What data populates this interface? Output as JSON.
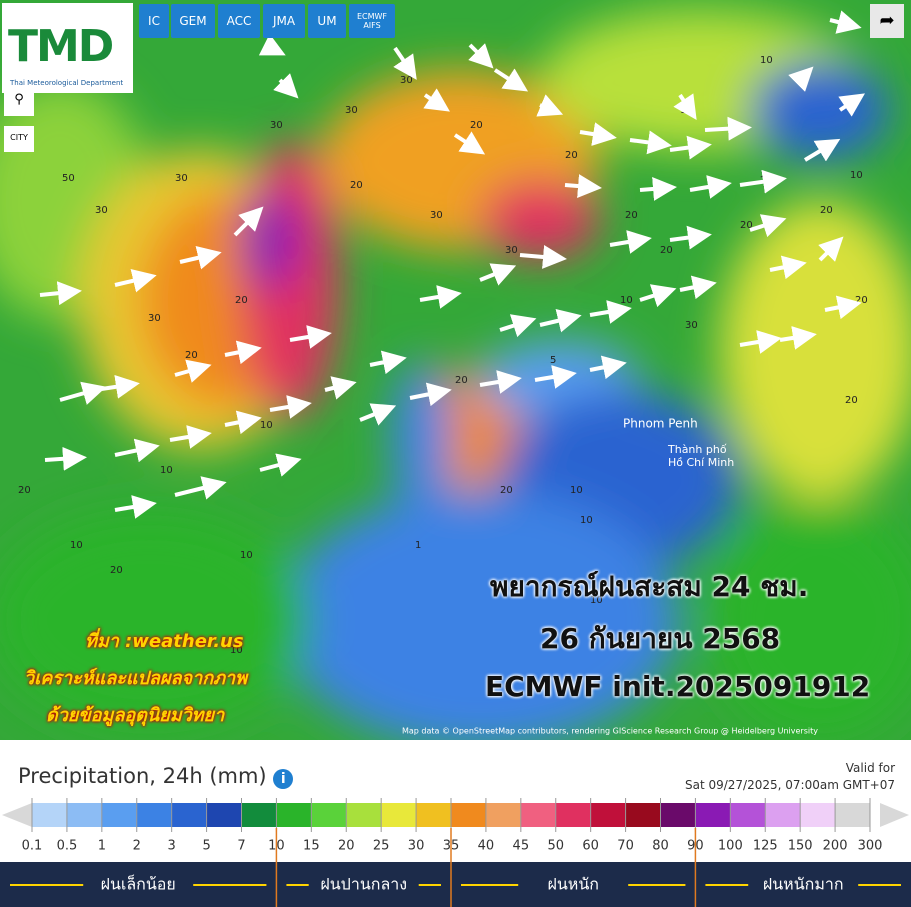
{
  "logo": {
    "name": "TMD",
    "subtitle": "Thai Meteorological Department"
  },
  "models": [
    "IC",
    "GEM",
    "ACC",
    "JMA",
    "UM",
    "ECMWF",
    "AIFS"
  ],
  "city": "CITY",
  "places": [
    "Phnom Penh",
    "Thành phố",
    "Hồ Chí Minh"
  ],
  "attribution": "Map data © OpenStreetMap contributors, rendering GIScience Research Group @ Heidelberg University",
  "overlay": [
    "พยากรณ์ฝนสะสม 24 ชม.",
    "26 กันยายน 2568",
    "ECMWF init.2025091912"
  ],
  "notes": [
    "ที่มา :weather.us",
    "วิเคราะห์และแปลผลจากภาพ",
    "ด้วยข้อมูลอุตุนิยมวิทยา"
  ],
  "map_labels": [
    50,
    30,
    30,
    30,
    20,
    30,
    20,
    10,
    30,
    30,
    20,
    30,
    20,
    20,
    30,
    20,
    20,
    10,
    10,
    20,
    20,
    20,
    10,
    30,
    20,
    10,
    20,
    20,
    10,
    10,
    20,
    10,
    10,
    5,
    20,
    10,
    20,
    10,
    1,
    10
  ],
  "legend": {
    "title": "Precipitation, 24h (mm)",
    "valid_label": "Valid for",
    "valid_time": "Sat 09/27/2025, 07:00am GMT+07",
    "ticks": [
      0.1,
      0.5,
      1,
      2,
      3,
      5,
      7,
      10,
      15,
      20,
      25,
      30,
      35,
      40,
      45,
      50,
      60,
      70,
      80,
      90,
      100,
      125,
      150,
      200,
      300
    ],
    "colors": [
      "#b4d4f8",
      "#8cbcf4",
      "#5a9ef0",
      "#3c82e4",
      "#2a64d0",
      "#1e46b0",
      "#128c3c",
      "#2ab42a",
      "#5ad23a",
      "#a8e03c",
      "#e8e83a",
      "#f0c020",
      "#f08a1e",
      "#f0a060",
      "#f06080",
      "#e03060",
      "#c0103a",
      "#980a1e",
      "#6a0a6a",
      "#8a1ab4",
      "#b452d8",
      "#dca0f0",
      "#f0d0f8",
      "#d8d8d8"
    ],
    "dividers": [
      10,
      35,
      90
    ],
    "categories": [
      "ฝนเล็กน้อย",
      "ฝนปานกลาง",
      "ฝนหนัก",
      "ฝนหนักมาก"
    ]
  }
}
